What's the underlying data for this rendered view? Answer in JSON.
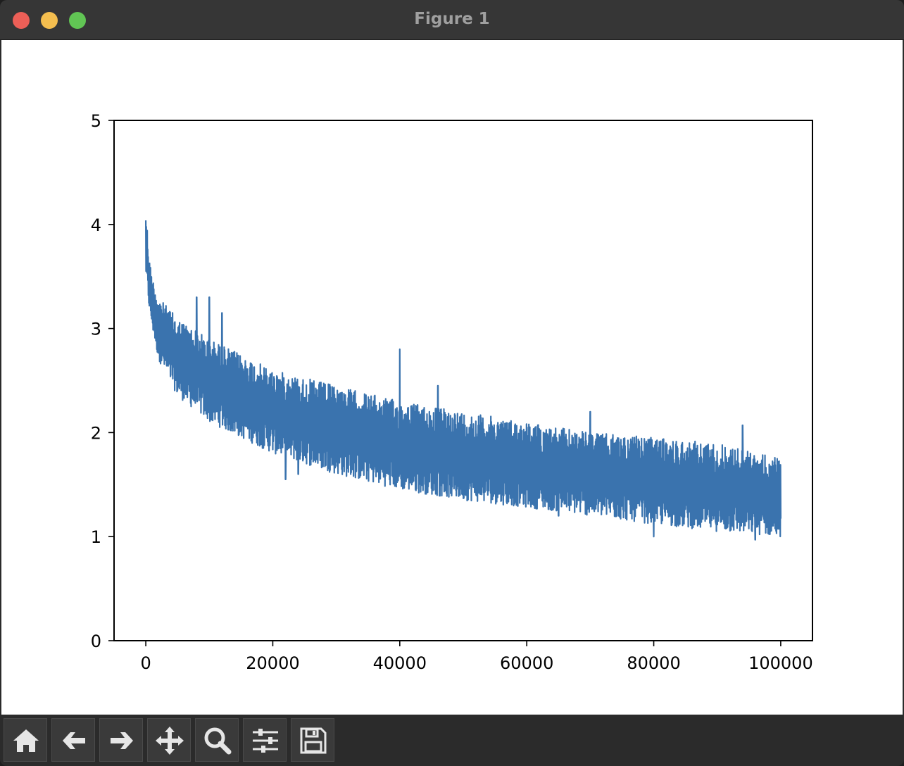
{
  "window": {
    "title": "Figure 1"
  },
  "colors": {
    "close": "#ec5f57",
    "minimize": "#f4be4f",
    "maximize": "#61c554",
    "line": "#3a73ae",
    "titlebar": "#363636",
    "toolbar": "#2b2b2b",
    "icon": "#e6e6e6"
  },
  "toolbar": {
    "buttons": [
      {
        "name": "home-button",
        "icon": "home-icon"
      },
      {
        "name": "back-button",
        "icon": "arrow-left-icon"
      },
      {
        "name": "forward-button",
        "icon": "arrow-right-icon"
      },
      {
        "name": "pan-button",
        "icon": "move-icon"
      },
      {
        "name": "zoom-button",
        "icon": "magnifier-icon"
      },
      {
        "name": "configure-subplots-button",
        "icon": "sliders-icon"
      },
      {
        "name": "save-button",
        "icon": "floppy-disk-icon"
      }
    ]
  },
  "chart_data": {
    "type": "line",
    "title": "",
    "xlabel": "",
    "ylabel": "",
    "xlim": [
      -5000,
      105000
    ],
    "ylim": [
      0,
      5
    ],
    "x_ticks": [
      0,
      20000,
      40000,
      60000,
      80000,
      100000
    ],
    "y_ticks": [
      0,
      1,
      2,
      3,
      4,
      5
    ],
    "grid": false,
    "legend": "none",
    "series": [
      {
        "x": [
          0,
          500,
          1000,
          2000,
          5000,
          10000,
          15000,
          20000,
          30000,
          40000,
          50000,
          60000,
          70000,
          80000,
          90000,
          100000
        ],
        "upper": [
          4.2,
          3.7,
          3.5,
          3.3,
          3.1,
          2.9,
          2.75,
          2.6,
          2.45,
          2.3,
          2.2,
          2.1,
          2.0,
          1.95,
          1.9,
          1.75
        ],
        "lower": [
          3.5,
          3.2,
          3.0,
          2.7,
          2.35,
          2.1,
          1.95,
          1.8,
          1.6,
          1.45,
          1.35,
          1.28,
          1.2,
          1.12,
          1.05,
          1.0
        ],
        "spikes_high": [
          [
            10000,
            3.3
          ],
          [
            12000,
            3.15
          ],
          [
            22000,
            3.0
          ],
          [
            40000,
            2.8
          ],
          [
            46000,
            2.45
          ],
          [
            70000,
            2.2
          ],
          [
            94000,
            2.07
          ],
          [
            8000,
            3.3
          ]
        ],
        "spikes_low": [
          [
            22000,
            1.55
          ],
          [
            24000,
            1.6
          ],
          [
            65000,
            1.2
          ],
          [
            80000,
            1.0
          ],
          [
            96000,
            0.97
          ]
        ]
      }
    ]
  }
}
